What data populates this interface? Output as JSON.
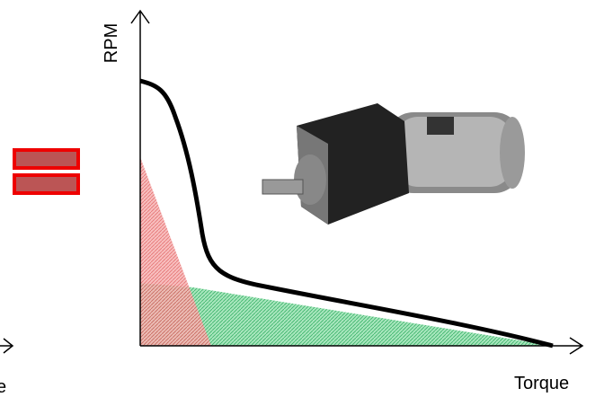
{
  "labels": {
    "y_axis": "RPM",
    "x_axis": "Torque",
    "left_fragment": "e"
  }
}
